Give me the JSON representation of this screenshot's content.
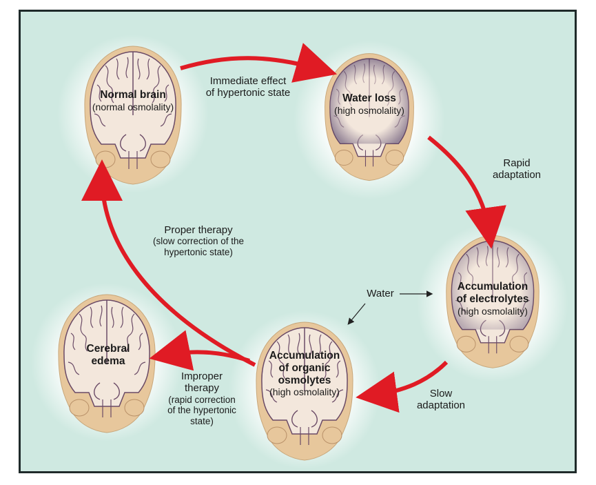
{
  "brains": [
    {
      "id": "normal",
      "title": "Normal brain",
      "sub": "(normal osmolality)"
    },
    {
      "id": "water-loss",
      "title": "Water loss",
      "sub": "(high osmolality)"
    },
    {
      "id": "electrolytes",
      "title1": "Accumulation",
      "title2": "of electrolytes",
      "sub": "(high osmolality)"
    },
    {
      "id": "organic",
      "title1": "Accumulation",
      "title2": "of organic",
      "title3": "osmolytes",
      "sub": "(high osmolality)"
    },
    {
      "id": "edema",
      "title1": "Cerebral",
      "title2": "edema"
    }
  ],
  "arrows": {
    "immediate": {
      "line1": "Immediate effect",
      "line2": "of hypertonic state"
    },
    "rapid": {
      "line1": "Rapid",
      "line2": "adaptation"
    },
    "slow": {
      "line1": "Slow",
      "line2": "adaptation"
    },
    "proper": {
      "line1": "Proper therapy",
      "line2": "(slow correction of the",
      "line3": "hypertonic state)"
    },
    "improper": {
      "line1": "Improper",
      "line2": "therapy",
      "line3": "(rapid correction",
      "line4": "of the hypertonic",
      "line5": "state)"
    },
    "water": {
      "label": "Water"
    }
  },
  "colors": {
    "background": "#cfe9e1",
    "arrow": "#e01b24",
    "brain_tissue": "#f3e7dc",
    "sulci": "#6a4a66",
    "shell": "#e7c79c",
    "water_loss_rim": "#4d3a63"
  }
}
